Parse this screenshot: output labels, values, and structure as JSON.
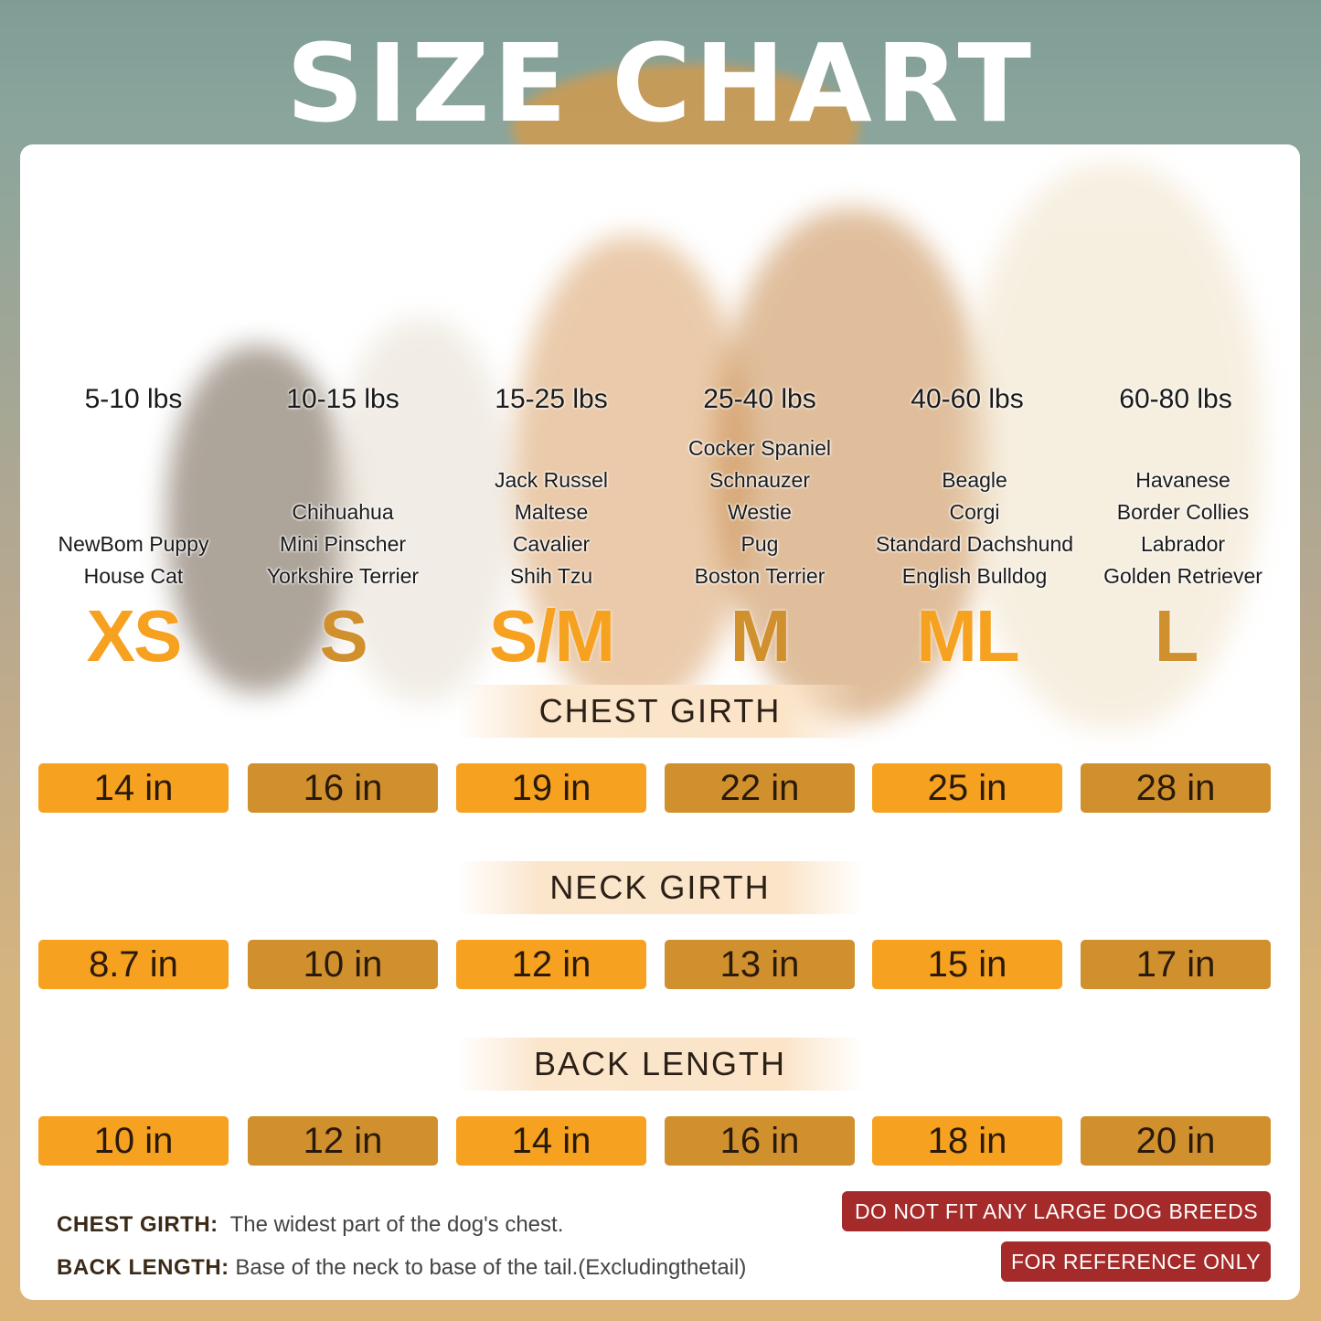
{
  "title": "SIZE CHART",
  "colors": {
    "bright": "#F6A11F",
    "dark": "#D1902E",
    "warning": "#A52A2A"
  },
  "columns": [
    {
      "size": "XS",
      "weight": "5-10 lbs",
      "breeds": [
        "NewBom Puppy",
        "House Cat"
      ],
      "chest": "14 in",
      "neck": "8.7 in",
      "back": "10 in"
    },
    {
      "size": "S",
      "weight": "10-15 lbs",
      "breeds": [
        "Chihuahua",
        "Mini Pinscher",
        "Yorkshire Terrier"
      ],
      "chest": "16 in",
      "neck": "10 in",
      "back": "12 in"
    },
    {
      "size": "S/M",
      "weight": "15-25 lbs",
      "breeds": [
        "Jack Russel",
        "Maltese",
        "Cavalier",
        "Shih Tzu"
      ],
      "chest": "19 in",
      "neck": "12 in",
      "back": "14 in"
    },
    {
      "size": "M",
      "weight": "25-40 lbs",
      "breeds": [
        "Cocker Spaniel",
        "Schnauzer",
        "Westie",
        "Pug",
        "Boston Terrier"
      ],
      "chest": "22 in",
      "neck": "13 in",
      "back": "16 in"
    },
    {
      "size": "ML",
      "weight": "40-60 lbs",
      "breeds": [
        "Beagle",
        "Corgi",
        "Standard Dachshund",
        "English Bulldog"
      ],
      "chest": "25 in",
      "neck": "15 in",
      "back": "18 in"
    },
    {
      "size": "L",
      "weight": "60-80 lbs",
      "breeds": [
        "Havanese",
        "Border Collies",
        "Labrador",
        "Golden Retriever"
      ],
      "chest": "28 in",
      "neck": "17 in",
      "back": "20 in"
    }
  ],
  "sections": {
    "chest": "CHEST GIRTH",
    "neck": "NECK GIRTH",
    "back": "BACK LENGTH"
  },
  "notes": {
    "chest_label": "CHEST GIRTH:",
    "chest_text": "The widest part of the dog's chest.",
    "back_label": "BACK LENGTH:",
    "back_text": "Base of the neck to base of the tail.(Excludingthetail)"
  },
  "warnings": {
    "large": "DO NOT FIT ANY LARGE DOG BREEDS",
    "reference": "FOR REFERENCE ONLY"
  }
}
